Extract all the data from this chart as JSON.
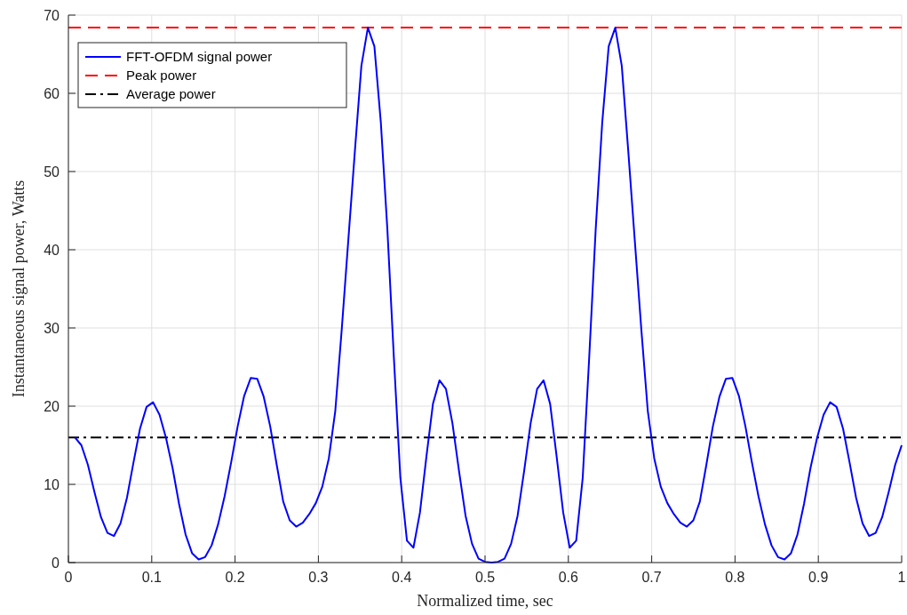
{
  "chart_data": {
    "type": "line",
    "xlabel": "Normalized time, sec",
    "ylabel": "Instantaneous signal power, Watts",
    "x": [
      0.0078,
      0.0156,
      0.0234,
      0.0313,
      0.0391,
      0.0469,
      0.0547,
      0.0625,
      0.0703,
      0.0781,
      0.0859,
      0.0938,
      0.1016,
      0.1094,
      0.1172,
      0.125,
      0.1328,
      0.1406,
      0.1484,
      0.1563,
      0.1641,
      0.1719,
      0.1797,
      0.1875,
      0.1953,
      0.2031,
      0.2109,
      0.2188,
      0.2266,
      0.2344,
      0.2422,
      0.25,
      0.2578,
      0.2656,
      0.2734,
      0.2813,
      0.2891,
      0.2969,
      0.3047,
      0.3125,
      0.3203,
      0.3281,
      0.3359,
      0.3438,
      0.3516,
      0.3594,
      0.3672,
      0.375,
      0.3828,
      0.3906,
      0.3984,
      0.4063,
      0.4141,
      0.4219,
      0.4297,
      0.4375,
      0.4453,
      0.4531,
      0.4609,
      0.4688,
      0.4766,
      0.4844,
      0.4922,
      0.5,
      0.5078,
      0.5156,
      0.5234,
      0.5313,
      0.5391,
      0.5469,
      0.5547,
      0.5625,
      0.5703,
      0.5781,
      0.5859,
      0.5938,
      0.6016,
      0.6094,
      0.6172,
      0.625,
      0.6328,
      0.6406,
      0.6484,
      0.6563,
      0.6641,
      0.6719,
      0.6797,
      0.6875,
      0.6953,
      0.7031,
      0.7109,
      0.7188,
      0.7266,
      0.7344,
      0.7422,
      0.75,
      0.7578,
      0.7656,
      0.7734,
      0.7813,
      0.7891,
      0.7969,
      0.8047,
      0.8125,
      0.8203,
      0.8281,
      0.8359,
      0.8438,
      0.8516,
      0.8594,
      0.8672,
      0.875,
      0.8828,
      0.8906,
      0.8984,
      0.9063,
      0.9141,
      0.9219,
      0.9297,
      0.9375,
      0.9453,
      0.9531,
      0.9609,
      0.9688,
      0.9766,
      0.9844,
      0.9922,
      1
    ],
    "series": [
      {
        "name": "FFT-OFDM signal power",
        "color": "#0000ff",
        "values": [
          16,
          15,
          12.5,
          9,
          5.8,
          3.8,
          3.4,
          5,
          8.3,
          12.8,
          17.1,
          19.9,
          20.5,
          18.9,
          15.9,
          12.1,
          7.5,
          3.6,
          1.2,
          0.4,
          0.7,
          2.2,
          4.9,
          8.5,
          12.8,
          17.4,
          21.3,
          23.6,
          23.5,
          21.2,
          17.4,
          12.5,
          7.8,
          5.4,
          4.6,
          5.1,
          6.2,
          7.6,
          9.7,
          13.3,
          19.4,
          29.9,
          41.2,
          52.6,
          63.5,
          68.4,
          66,
          56.2,
          42.6,
          26.2,
          10.8,
          2.8,
          1.9,
          6.4,
          13.6,
          20.3,
          23.3,
          22.2,
          17.8,
          11.7,
          6,
          2.4,
          0.5,
          0.1,
          0,
          0.1,
          0.5,
          2.4,
          6,
          11.7,
          17.8,
          22.2,
          23.3,
          20.3,
          13.6,
          6.4,
          1.9,
          2.8,
          10.8,
          26.2,
          42.6,
          56.2,
          66,
          68.4,
          63.5,
          52.6,
          41.2,
          29.9,
          19.4,
          13.3,
          9.7,
          7.6,
          6.2,
          5.1,
          4.6,
          5.4,
          7.8,
          12.5,
          17.4,
          21.2,
          23.5,
          23.6,
          21.3,
          17.4,
          12.8,
          8.5,
          4.9,
          2.2,
          0.7,
          0.4,
          1.2,
          3.6,
          7.5,
          12.1,
          15.9,
          18.9,
          20.5,
          19.9,
          17.1,
          12.8,
          8.3,
          5,
          3.4,
          3.8,
          5.8,
          9,
          12.5,
          15
        ]
      }
    ],
    "ref_lines": [
      {
        "axis": "y",
        "value": 68.4,
        "label": "Peak power",
        "color": "#ff0000",
        "line_style": "dashed"
      },
      {
        "axis": "y",
        "value": 16,
        "label": "Average power",
        "color": "#000000",
        "line_style": "dashdot"
      }
    ],
    "xlim": [
      0,
      1
    ],
    "xticks": [
      0,
      0.1,
      0.2,
      0.3,
      0.4,
      0.5,
      0.6,
      0.7,
      0.8,
      0.9,
      1
    ],
    "ylim": [
      0,
      70
    ],
    "yticks": [
      0,
      10,
      20,
      30,
      40,
      50,
      60,
      70
    ],
    "grid": true,
    "legend": "top left",
    "line_style": "solid"
  }
}
